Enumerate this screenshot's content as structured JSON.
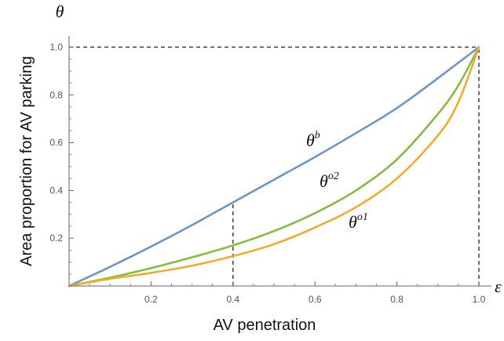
{
  "chart_data": {
    "type": "line",
    "xlabel": "AV penetration",
    "ylabel": "Area proportion for AV parking",
    "x_axis_symbol": "ε",
    "y_axis_symbol": "θ",
    "xlim": [
      0,
      1.0
    ],
    "ylim": [
      0,
      1.0
    ],
    "x_ticks": [
      "0.2",
      "0.4",
      "0.6",
      "0.8",
      "1.0"
    ],
    "y_ticks": [
      "0.2",
      "0.4",
      "0.6",
      "0.8",
      "1.0"
    ],
    "grid": false,
    "series": [
      {
        "label_base": "θ",
        "label_sup": "b",
        "color": "#6f95c7",
        "x": [
          0,
          0.1,
          0.2,
          0.3,
          0.4,
          0.5,
          0.6,
          0.7,
          0.8,
          0.9,
          1.0
        ],
        "y": [
          0,
          0.08,
          0.165,
          0.255,
          0.35,
          0.445,
          0.54,
          0.64,
          0.745,
          0.87,
          1.0
        ]
      },
      {
        "label_base": "θ",
        "label_sup": "o2",
        "color": "#86bb45",
        "x": [
          0,
          0.1,
          0.2,
          0.3,
          0.4,
          0.5,
          0.6,
          0.7,
          0.8,
          0.9,
          0.95,
          1.0
        ],
        "y": [
          0,
          0.035,
          0.075,
          0.12,
          0.17,
          0.23,
          0.305,
          0.4,
          0.53,
          0.72,
          0.84,
          1.0
        ]
      },
      {
        "label_base": "θ",
        "label_sup": "o1",
        "color": "#f0ac2e",
        "x": [
          0,
          0.1,
          0.2,
          0.3,
          0.4,
          0.5,
          0.6,
          0.7,
          0.8,
          0.9,
          0.95,
          1.0
        ],
        "y": [
          0,
          0.03,
          0.055,
          0.085,
          0.125,
          0.175,
          0.245,
          0.33,
          0.45,
          0.63,
          0.77,
          1.0
        ]
      }
    ],
    "reference_lines": [
      {
        "type": "vertical",
        "x": 0.4,
        "y_to": 0.35
      },
      {
        "type": "vertical",
        "x": 1.0,
        "y_to": 1.0
      },
      {
        "type": "horizontal",
        "y": 1.0,
        "x_to": 1.0
      }
    ]
  }
}
